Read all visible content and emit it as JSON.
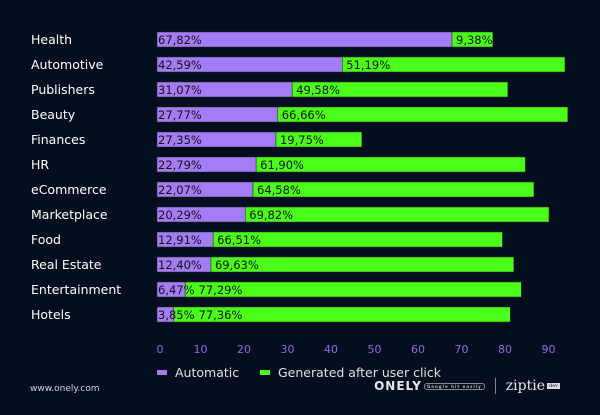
{
  "chart_data": {
    "type": "bar",
    "stacked": true,
    "orientation": "horizontal",
    "categories": [
      "Health",
      "Automotive",
      "Publishers",
      "Beauty",
      "Finances",
      "HR",
      "eCommerce",
      "Marketplace",
      "Food",
      "Real Estate",
      "Entertainment",
      "Hotels"
    ],
    "series": [
      {
        "name": "Automatic",
        "color": "#a57cf8",
        "values": [
          67.82,
          42.59,
          31.07,
          27.77,
          27.35,
          22.79,
          22.07,
          20.29,
          12.91,
          12.4,
          6.47,
          3.85
        ],
        "labels": [
          "67,82%",
          "42,59%",
          "31,07%",
          "27,77%",
          "27,35%",
          "22,79%",
          "22,07%",
          "20,29%",
          "12,91%",
          "12,40%",
          "6,47%",
          "3,85%"
        ]
      },
      {
        "name": "Generated after user click",
        "color": "#4cff1a",
        "values": [
          9.38,
          51.19,
          49.58,
          66.66,
          19.75,
          61.9,
          64.58,
          69.82,
          66.51,
          69.63,
          77.29,
          77.36
        ],
        "labels": [
          "9,38%",
          "51,19%",
          "49,58%",
          "66,66%",
          "19,75%",
          "61,90%",
          "64,58%",
          "69,82%",
          "66,51%",
          "69,63%",
          "77,29%",
          "77,36%"
        ]
      }
    ],
    "xticks": [
      "0",
      "10",
      "20",
      "30",
      "40",
      "50",
      "60",
      "70",
      "80",
      "90"
    ],
    "xlim": [
      0,
      95
    ],
    "grid": false,
    "legend_position": "bottom-left"
  },
  "footer": {
    "url": "www.onely.com",
    "logo_onely": "ONELY",
    "logo_onely_tag": "Google hit easily",
    "logo_ziptie": "ziptie",
    "logo_ziptie_tag": "dev"
  }
}
